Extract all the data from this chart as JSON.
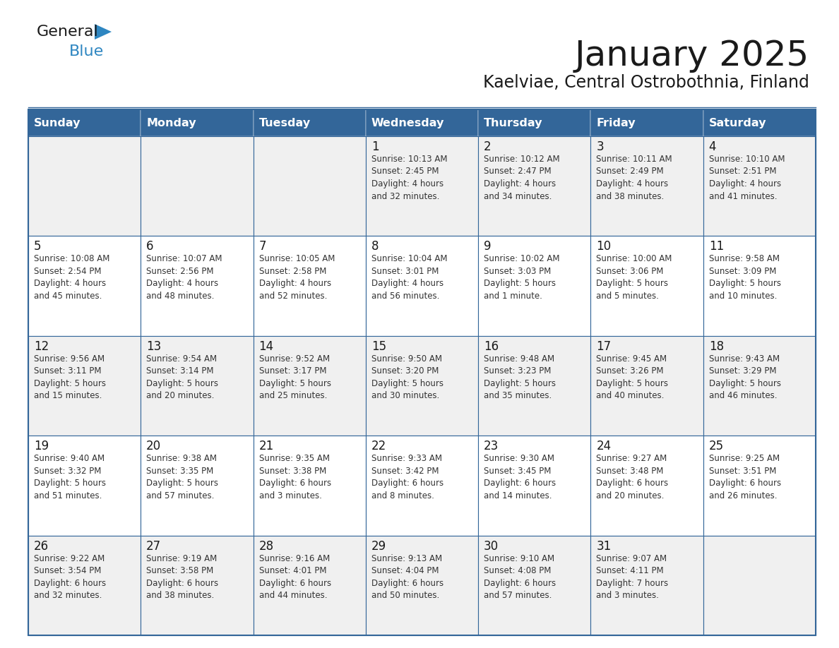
{
  "title": "January 2025",
  "subtitle": "Kaelviae, Central Ostrobothnia, Finland",
  "days_of_week": [
    "Sunday",
    "Monday",
    "Tuesday",
    "Wednesday",
    "Thursday",
    "Friday",
    "Saturday"
  ],
  "header_bg": "#336699",
  "header_text": "#FFFFFF",
  "cell_bg_white": "#FFFFFF",
  "cell_bg_gray": "#F0F0F0",
  "grid_line_color": "#336699",
  "title_color": "#1a1a1a",
  "subtitle_color": "#1a1a1a",
  "cell_text_color": "#333333",
  "day_num_color": "#1a1a1a",
  "logo_general_color": "#1a1a1a",
  "logo_blue_color": "#2E86C1",
  "calendar": [
    [
      {
        "day": "",
        "info": ""
      },
      {
        "day": "",
        "info": ""
      },
      {
        "day": "",
        "info": ""
      },
      {
        "day": "1",
        "info": "Sunrise: 10:13 AM\nSunset: 2:45 PM\nDaylight: 4 hours\nand 32 minutes."
      },
      {
        "day": "2",
        "info": "Sunrise: 10:12 AM\nSunset: 2:47 PM\nDaylight: 4 hours\nand 34 minutes."
      },
      {
        "day": "3",
        "info": "Sunrise: 10:11 AM\nSunset: 2:49 PM\nDaylight: 4 hours\nand 38 minutes."
      },
      {
        "day": "4",
        "info": "Sunrise: 10:10 AM\nSunset: 2:51 PM\nDaylight: 4 hours\nand 41 minutes."
      }
    ],
    [
      {
        "day": "5",
        "info": "Sunrise: 10:08 AM\nSunset: 2:54 PM\nDaylight: 4 hours\nand 45 minutes."
      },
      {
        "day": "6",
        "info": "Sunrise: 10:07 AM\nSunset: 2:56 PM\nDaylight: 4 hours\nand 48 minutes."
      },
      {
        "day": "7",
        "info": "Sunrise: 10:05 AM\nSunset: 2:58 PM\nDaylight: 4 hours\nand 52 minutes."
      },
      {
        "day": "8",
        "info": "Sunrise: 10:04 AM\nSunset: 3:01 PM\nDaylight: 4 hours\nand 56 minutes."
      },
      {
        "day": "9",
        "info": "Sunrise: 10:02 AM\nSunset: 3:03 PM\nDaylight: 5 hours\nand 1 minute."
      },
      {
        "day": "10",
        "info": "Sunrise: 10:00 AM\nSunset: 3:06 PM\nDaylight: 5 hours\nand 5 minutes."
      },
      {
        "day": "11",
        "info": "Sunrise: 9:58 AM\nSunset: 3:09 PM\nDaylight: 5 hours\nand 10 minutes."
      }
    ],
    [
      {
        "day": "12",
        "info": "Sunrise: 9:56 AM\nSunset: 3:11 PM\nDaylight: 5 hours\nand 15 minutes."
      },
      {
        "day": "13",
        "info": "Sunrise: 9:54 AM\nSunset: 3:14 PM\nDaylight: 5 hours\nand 20 minutes."
      },
      {
        "day": "14",
        "info": "Sunrise: 9:52 AM\nSunset: 3:17 PM\nDaylight: 5 hours\nand 25 minutes."
      },
      {
        "day": "15",
        "info": "Sunrise: 9:50 AM\nSunset: 3:20 PM\nDaylight: 5 hours\nand 30 minutes."
      },
      {
        "day": "16",
        "info": "Sunrise: 9:48 AM\nSunset: 3:23 PM\nDaylight: 5 hours\nand 35 minutes."
      },
      {
        "day": "17",
        "info": "Sunrise: 9:45 AM\nSunset: 3:26 PM\nDaylight: 5 hours\nand 40 minutes."
      },
      {
        "day": "18",
        "info": "Sunrise: 9:43 AM\nSunset: 3:29 PM\nDaylight: 5 hours\nand 46 minutes."
      }
    ],
    [
      {
        "day": "19",
        "info": "Sunrise: 9:40 AM\nSunset: 3:32 PM\nDaylight: 5 hours\nand 51 minutes."
      },
      {
        "day": "20",
        "info": "Sunrise: 9:38 AM\nSunset: 3:35 PM\nDaylight: 5 hours\nand 57 minutes."
      },
      {
        "day": "21",
        "info": "Sunrise: 9:35 AM\nSunset: 3:38 PM\nDaylight: 6 hours\nand 3 minutes."
      },
      {
        "day": "22",
        "info": "Sunrise: 9:33 AM\nSunset: 3:42 PM\nDaylight: 6 hours\nand 8 minutes."
      },
      {
        "day": "23",
        "info": "Sunrise: 9:30 AM\nSunset: 3:45 PM\nDaylight: 6 hours\nand 14 minutes."
      },
      {
        "day": "24",
        "info": "Sunrise: 9:27 AM\nSunset: 3:48 PM\nDaylight: 6 hours\nand 20 minutes."
      },
      {
        "day": "25",
        "info": "Sunrise: 9:25 AM\nSunset: 3:51 PM\nDaylight: 6 hours\nand 26 minutes."
      }
    ],
    [
      {
        "day": "26",
        "info": "Sunrise: 9:22 AM\nSunset: 3:54 PM\nDaylight: 6 hours\nand 32 minutes."
      },
      {
        "day": "27",
        "info": "Sunrise: 9:19 AM\nSunset: 3:58 PM\nDaylight: 6 hours\nand 38 minutes."
      },
      {
        "day": "28",
        "info": "Sunrise: 9:16 AM\nSunset: 4:01 PM\nDaylight: 6 hours\nand 44 minutes."
      },
      {
        "day": "29",
        "info": "Sunrise: 9:13 AM\nSunset: 4:04 PM\nDaylight: 6 hours\nand 50 minutes."
      },
      {
        "day": "30",
        "info": "Sunrise: 9:10 AM\nSunset: 4:08 PM\nDaylight: 6 hours\nand 57 minutes."
      },
      {
        "day": "31",
        "info": "Sunrise: 9:07 AM\nSunset: 4:11 PM\nDaylight: 7 hours\nand 3 minutes."
      },
      {
        "day": "",
        "info": ""
      }
    ]
  ]
}
